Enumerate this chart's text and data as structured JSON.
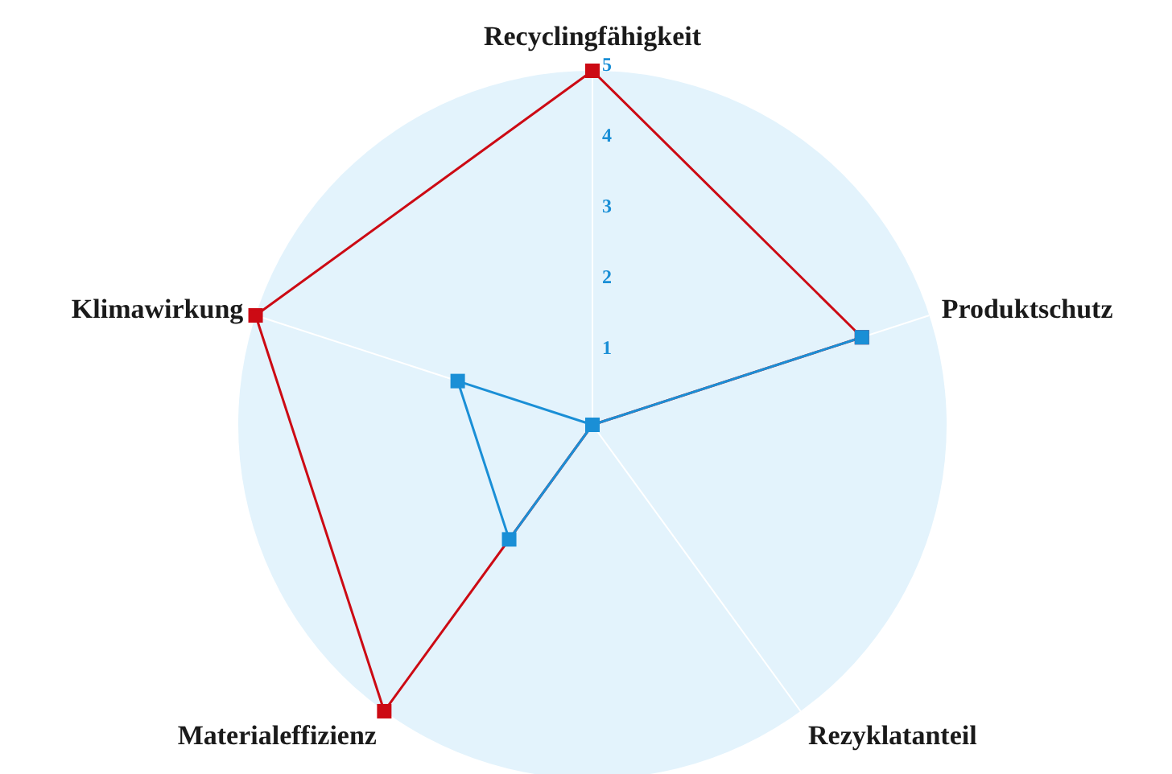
{
  "chart_data": {
    "type": "radar",
    "categories": [
      "Recyclingfähigkeit",
      "Produktschutz",
      "Rezyklatanteil",
      "Materialeffizienz",
      "Klimawirkung"
    ],
    "series": [
      {
        "color": "#cc0a14",
        "values": [
          5,
          4,
          0,
          5,
          5
        ]
      },
      {
        "color": "#1a8fd6",
        "values": [
          0,
          4,
          0,
          2,
          2
        ]
      }
    ],
    "ylim": [
      0,
      5
    ],
    "yticks": [
      1,
      2,
      3,
      4,
      5
    ],
    "grid": true,
    "marker": "square",
    "legend": false
  }
}
